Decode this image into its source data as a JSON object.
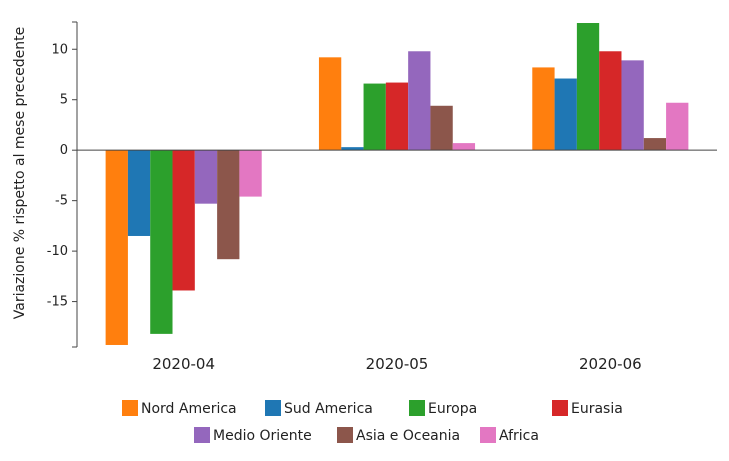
{
  "chart_data": {
    "type": "bar",
    "categories": [
      "2020-04",
      "2020-05",
      "2020-06"
    ],
    "ylabel": "Variazione % rispetto al mese precedente",
    "ylim": [
      -19.5,
      12.7
    ],
    "yticks": [
      10,
      5,
      0,
      -5,
      -10,
      -15
    ],
    "ytick_labels": [
      "10",
      "5",
      "0",
      "-5",
      "-10",
      "-15"
    ],
    "grid": false,
    "legend_position": "bottom",
    "series": [
      {
        "name": "Nord America",
        "color": "#ff7f0e",
        "values": [
          -19.3,
          9.2,
          8.2
        ]
      },
      {
        "name": "Sud America",
        "color": "#1f77b4",
        "values": [
          -8.5,
          0.3,
          7.1
        ]
      },
      {
        "name": "Europa",
        "color": "#2ca02c",
        "values": [
          -18.2,
          6.6,
          12.6
        ]
      },
      {
        "name": "Eurasia",
        "color": "#d62728",
        "values": [
          -13.9,
          6.7,
          9.8
        ]
      },
      {
        "name": "Medio Oriente",
        "color": "#9467bd",
        "values": [
          -5.3,
          9.8,
          8.9
        ]
      },
      {
        "name": "Asia e Oceania",
        "color": "#8c564b",
        "values": [
          -10.8,
          4.4,
          1.2
        ]
      },
      {
        "name": "Africa",
        "color": "#e377c2",
        "values": [
          -4.6,
          0.7,
          4.7
        ]
      }
    ]
  }
}
